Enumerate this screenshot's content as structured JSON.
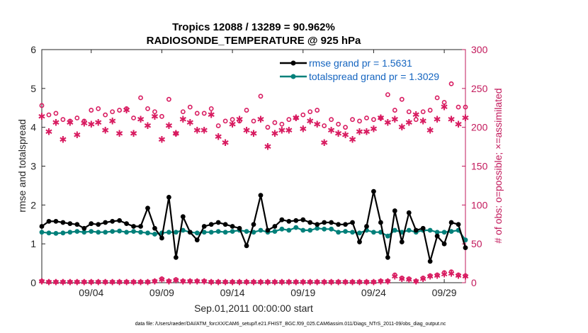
{
  "chart_data": {
    "type": "line",
    "title_line1": "Tropics 12088 / 13289 = 90.962%",
    "title_line2": "RADIOSONDE_TEMPERATURE @ 925 hPa",
    "xlabel": "Sep.01,2011 00:00:00 start",
    "ylabel_left": "rmse and totalspread",
    "ylabel_right": "# of obs: o=possible; ×=assimilated",
    "ylim_left": [
      0,
      6
    ],
    "ylim_right": [
      0,
      300
    ],
    "xlim": [
      0.5,
      30.5
    ],
    "left_ticks": [
      "0",
      "1",
      "2",
      "3",
      "4",
      "5",
      "6"
    ],
    "right_ticks": [
      "0",
      "50",
      "100",
      "150",
      "200",
      "250",
      "300"
    ],
    "x_ticks": [
      {
        "day": 4,
        "label": "09/04"
      },
      {
        "day": 9,
        "label": "09/09"
      },
      {
        "day": 14,
        "label": "09/14"
      },
      {
        "day": 19,
        "label": "09/19"
      },
      {
        "day": 24,
        "label": "09/24"
      },
      {
        "day": 29,
        "label": "09/29"
      }
    ],
    "legend": [
      "rmse grand pr = 1.5631",
      "totalspread grand pr = 1.3029"
    ],
    "colors": {
      "rmse": "#000000",
      "spread": "#00807a",
      "obs": "#d81b60",
      "axis_right": "#c2185b",
      "legend_text": "#1565c0"
    },
    "rmse": {
      "name": "rmse",
      "x": [
        0.5,
        1,
        1.5,
        2,
        2.5,
        3,
        3.5,
        4,
        4.5,
        5,
        5.5,
        6,
        6.5,
        7,
        7.5,
        8,
        8.5,
        9,
        9.5,
        10,
        10.5,
        11,
        11.5,
        12,
        12.5,
        13,
        13.5,
        14,
        14.5,
        15,
        15.5,
        16,
        16.5,
        17,
        17.5,
        18,
        18.5,
        19,
        19.5,
        20,
        20.5,
        21,
        21.5,
        22,
        22.5,
        23,
        23.5,
        24,
        24.5,
        25,
        25.5,
        26,
        26.5,
        27,
        27.5,
        28,
        28.5,
        29,
        29.5,
        30,
        30.5
      ],
      "y": [
        1.45,
        1.58,
        1.58,
        1.55,
        1.52,
        1.5,
        1.4,
        1.52,
        1.5,
        1.55,
        1.58,
        1.6,
        1.52,
        1.45,
        1.45,
        1.92,
        1.4,
        1.15,
        2.2,
        0.65,
        1.7,
        1.3,
        1.1,
        1.45,
        1.5,
        1.55,
        1.5,
        1.45,
        1.4,
        0.95,
        1.5,
        2.25,
        1.35,
        1.45,
        1.62,
        1.58,
        1.6,
        1.62,
        1.55,
        1.5,
        1.55,
        1.55,
        1.5,
        1.5,
        1.55,
        1.05,
        1.45,
        2.35,
        1.55,
        0.65,
        1.85,
        1.05,
        1.8,
        1.35,
        1.4,
        0.55,
        1.2,
        1.0,
        1.55,
        1.5,
        0.9
      ]
    },
    "totalspread": {
      "name": "totalspread",
      "x": [
        0.5,
        1,
        1.5,
        2,
        2.5,
        3,
        3.5,
        4,
        4.5,
        5,
        5.5,
        6,
        6.5,
        7,
        7.5,
        8,
        8.5,
        9,
        9.5,
        10,
        10.5,
        11,
        11.5,
        12,
        12.5,
        13,
        13.5,
        14,
        14.5,
        15,
        15.5,
        16,
        16.5,
        17,
        17.5,
        18,
        18.5,
        19,
        19.5,
        20,
        20.5,
        21,
        21.5,
        22,
        22.5,
        23,
        23.5,
        24,
        24.5,
        25,
        25.5,
        26,
        26.5,
        27,
        27.5,
        28,
        28.5,
        29,
        29.5,
        30,
        30.5
      ],
      "y": [
        1.3,
        1.28,
        1.27,
        1.28,
        1.3,
        1.32,
        1.3,
        1.32,
        1.3,
        1.3,
        1.32,
        1.33,
        1.3,
        1.32,
        1.3,
        1.28,
        1.25,
        1.28,
        1.3,
        1.3,
        1.35,
        1.3,
        1.28,
        1.3,
        1.3,
        1.32,
        1.3,
        1.32,
        1.35,
        1.32,
        1.3,
        1.35,
        1.3,
        1.32,
        1.38,
        1.35,
        1.42,
        1.35,
        1.35,
        1.4,
        1.38,
        1.38,
        1.3,
        1.32,
        1.3,
        1.28,
        1.35,
        1.3,
        1.3,
        1.2,
        1.35,
        1.3,
        1.35,
        1.3,
        1.35,
        1.35,
        1.3,
        1.3,
        1.32,
        1.35,
        1.1
      ]
    },
    "obs_possible": {
      "name": "possible",
      "x": [
        0.5,
        1,
        1.5,
        2,
        2.5,
        3,
        3.5,
        4,
        4.5,
        5,
        5.5,
        6,
        6.5,
        7,
        7.5,
        8,
        8.5,
        9,
        9.5,
        10,
        10.5,
        11,
        11.5,
        12,
        12.5,
        13,
        13.5,
        14,
        14.5,
        15,
        15.5,
        16,
        16.5,
        17,
        17.5,
        18,
        18.5,
        19,
        19.5,
        20,
        20.5,
        21,
        21.5,
        22,
        22.5,
        23,
        23.5,
        24,
        24.5,
        25,
        25.5,
        26,
        26.5,
        27,
        27.5,
        28,
        28.5,
        29,
        29.5,
        30,
        30.5
      ],
      "y": [
        228,
        216,
        218,
        210,
        208,
        212,
        208,
        222,
        224,
        216,
        220,
        222,
        224,
        212,
        238,
        224,
        220,
        214,
        236,
        192,
        220,
        226,
        218,
        218,
        224,
        202,
        208,
        210,
        208,
        222,
        208,
        240,
        200,
        206,
        204,
        210,
        212,
        216,
        220,
        222,
        202,
        210,
        204,
        200,
        210,
        208,
        212,
        210,
        212,
        242,
        222,
        236,
        220,
        210,
        220,
        222,
        238,
        232,
        256,
        226,
        226
      ]
    },
    "obs_assimilated": {
      "name": "assimilated",
      "x": [
        0.5,
        1,
        1.5,
        2,
        2.5,
        3,
        3.5,
        4,
        4.5,
        5,
        5.5,
        6,
        6.5,
        7,
        7.5,
        8,
        8.5,
        9,
        9.5,
        10,
        10.5,
        11,
        11.5,
        12,
        12.5,
        13,
        13.5,
        14,
        14.5,
        15,
        15.5,
        16,
        16.5,
        17,
        17.5,
        18,
        18.5,
        19,
        19.5,
        20,
        20.5,
        21,
        21.5,
        22,
        22.5,
        23,
        23.5,
        24,
        24.5,
        25,
        25.5,
        26,
        26.5,
        27,
        27.5,
        28,
        28.5,
        29,
        29.5,
        30,
        30.5
      ],
      "y": [
        214,
        194,
        206,
        184,
        206,
        190,
        205,
        204,
        206,
        196,
        208,
        192,
        222,
        192,
        210,
        202,
        214,
        184,
        202,
        192,
        210,
        206,
        196,
        196,
        216,
        188,
        180,
        204,
        210,
        196,
        192,
        210,
        175,
        192,
        196,
        196,
        212,
        198,
        208,
        204,
        180,
        196,
        192,
        190,
        184,
        194,
        194,
        198,
        212,
        206,
        210,
        200,
        206,
        216,
        208,
        196,
        210,
        226,
        210,
        204,
        212
      ]
    },
    "obs_zero_possible_x": [
      0.5,
      1,
      1.5,
      2,
      2.5,
      3,
      3.5,
      4,
      4.5,
      5,
      5.5,
      6,
      6.5,
      7,
      7.5,
      8,
      8.5,
      9,
      9.5,
      10,
      10.5,
      11,
      11.5,
      12,
      12.5,
      13,
      13.5,
      14,
      14.5,
      15,
      15.5,
      16,
      16.5,
      17,
      17.5,
      18,
      18.5,
      19,
      19.5,
      20,
      20.5,
      21,
      21.5,
      22,
      22.5,
      23,
      23.5,
      24,
      24.5,
      25,
      25.5,
      26,
      26.5,
      27,
      27.5,
      28,
      28.5,
      29,
      29.5,
      30,
      30.5
    ],
    "obs_zero_possible_y": [
      2,
      1,
      1,
      1,
      1,
      1,
      1,
      1,
      1,
      1,
      1,
      1,
      1,
      1,
      1,
      1,
      2,
      5,
      2,
      4,
      2,
      2,
      2,
      2,
      1,
      1,
      1,
      1,
      1,
      1,
      1,
      1,
      1,
      1,
      1,
      1,
      1,
      1,
      1,
      1,
      1,
      1,
      1,
      1,
      1,
      1,
      1,
      1,
      2,
      2,
      10,
      6,
      5,
      2,
      6,
      9,
      10,
      13,
      14,
      10,
      9
    ],
    "obs_zero_assimilated_y": [
      2,
      1,
      1,
      1,
      1,
      1,
      1,
      1,
      1,
      1,
      1,
      1,
      1,
      1,
      1,
      1,
      2,
      4,
      2,
      3,
      2,
      2,
      2,
      2,
      1,
      1,
      1,
      1,
      1,
      1,
      1,
      1,
      1,
      1,
      1,
      1,
      1,
      1,
      1,
      1,
      1,
      1,
      1,
      1,
      1,
      1,
      1,
      1,
      2,
      2,
      8,
      5,
      4,
      2,
      5,
      8,
      9,
      11,
      12,
      9,
      8
    ]
  },
  "footer": "data file: /Users/raeder/DAI/ATM_forcXX/CAM6_setup/f.e21.FHIST_BGC.f09_025.CAM6assim.011/Diags_NTrS_2011-09/obs_diag_output.nc"
}
